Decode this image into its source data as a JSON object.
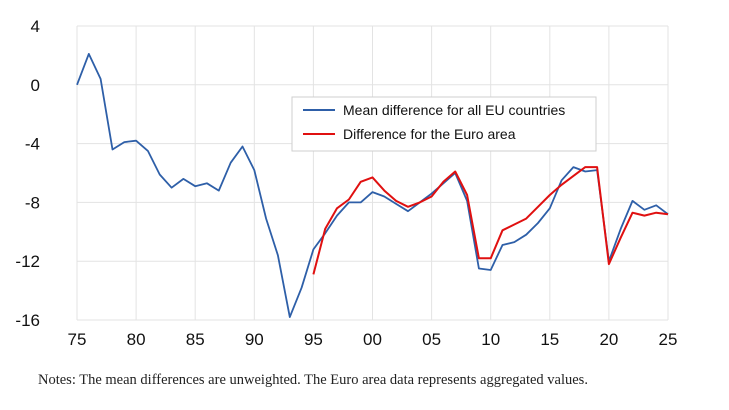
{
  "chart_data": {
    "type": "line",
    "xlabel": "",
    "ylabel": "",
    "xlim": [
      1975,
      2025
    ],
    "ylim": [
      -16,
      4
    ],
    "x_ticks": [
      {
        "value": 1975,
        "label": "75"
      },
      {
        "value": 1980,
        "label": "80"
      },
      {
        "value": 1985,
        "label": "85"
      },
      {
        "value": 1990,
        "label": "90"
      },
      {
        "value": 1995,
        "label": "95"
      },
      {
        "value": 2000,
        "label": "00"
      },
      {
        "value": 2005,
        "label": "05"
      },
      {
        "value": 2010,
        "label": "10"
      },
      {
        "value": 2015,
        "label": "15"
      },
      {
        "value": 2020,
        "label": "20"
      },
      {
        "value": 2025,
        "label": "25"
      }
    ],
    "y_ticks": [
      {
        "value": 4,
        "label": "4"
      },
      {
        "value": 0,
        "label": "0"
      },
      {
        "value": -4,
        "label": "-4"
      },
      {
        "value": -8,
        "label": "-8"
      },
      {
        "value": -12,
        "label": "-12"
      },
      {
        "value": -16,
        "label": "-16"
      }
    ],
    "grid": {
      "horizontal": true,
      "vertical": true
    },
    "legend_position": "upper-center",
    "series": [
      {
        "name": "Mean difference for all EU countries",
        "color": "#2e5fa8",
        "x": [
          1975,
          1976,
          1977,
          1978,
          1979,
          1980,
          1981,
          1982,
          1983,
          1984,
          1985,
          1986,
          1987,
          1988,
          1989,
          1990,
          1991,
          1992,
          1993,
          1994,
          1995,
          1996,
          1997,
          1998,
          1999,
          2000,
          2001,
          2002,
          2003,
          2004,
          2005,
          2006,
          2007,
          2008,
          2009,
          2010,
          2011,
          2012,
          2013,
          2014,
          2015,
          2016,
          2017,
          2018,
          2019,
          2020,
          2021,
          2022,
          2023,
          2024,
          2025
        ],
        "y": [
          0,
          2.1,
          0.4,
          -4.4,
          -3.9,
          -3.8,
          -4.5,
          -6.1,
          -7.0,
          -6.4,
          -6.9,
          -6.7,
          -7.2,
          -5.3,
          -4.2,
          -5.8,
          -9.1,
          -11.6,
          -15.8,
          -13.8,
          -11.2,
          -10.1,
          -8.9,
          -8.0,
          -8.0,
          -7.3,
          -7.6,
          -8.1,
          -8.6,
          -8.0,
          -7.4,
          -6.7,
          -6.0,
          -7.9,
          -12.5,
          -12.6,
          -10.9,
          -10.7,
          -10.2,
          -9.4,
          -8.4,
          -6.5,
          -5.6,
          -5.9,
          -5.8,
          -12.0,
          -9.8,
          -7.9,
          -8.5,
          -8.2,
          -8.8
        ]
      },
      {
        "name": "Difference for the Euro area",
        "color": "#e01010",
        "x": [
          1995,
          1996,
          1997,
          1998,
          1999,
          2000,
          2001,
          2002,
          2003,
          2004,
          2005,
          2006,
          2007,
          2008,
          2009,
          2010,
          2011,
          2012,
          2013,
          2014,
          2015,
          2016,
          2017,
          2018,
          2019,
          2020,
          2021,
          2022,
          2023,
          2024,
          2025
        ],
        "y": [
          -12.9,
          -9.8,
          -8.4,
          -7.8,
          -6.6,
          -6.3,
          -7.2,
          -7.9,
          -8.3,
          -8.0,
          -7.6,
          -6.6,
          -5.9,
          -7.5,
          -11.8,
          -11.8,
          -9.9,
          -9.5,
          -9.1,
          -8.3,
          -7.5,
          -6.8,
          -6.2,
          -5.6,
          -5.6,
          -12.2,
          -10.4,
          -8.7,
          -8.9,
          -8.7,
          -8.8
        ]
      }
    ]
  },
  "notes": "Notes: The mean differences are unweighted. The Euro area data represents aggregated values."
}
